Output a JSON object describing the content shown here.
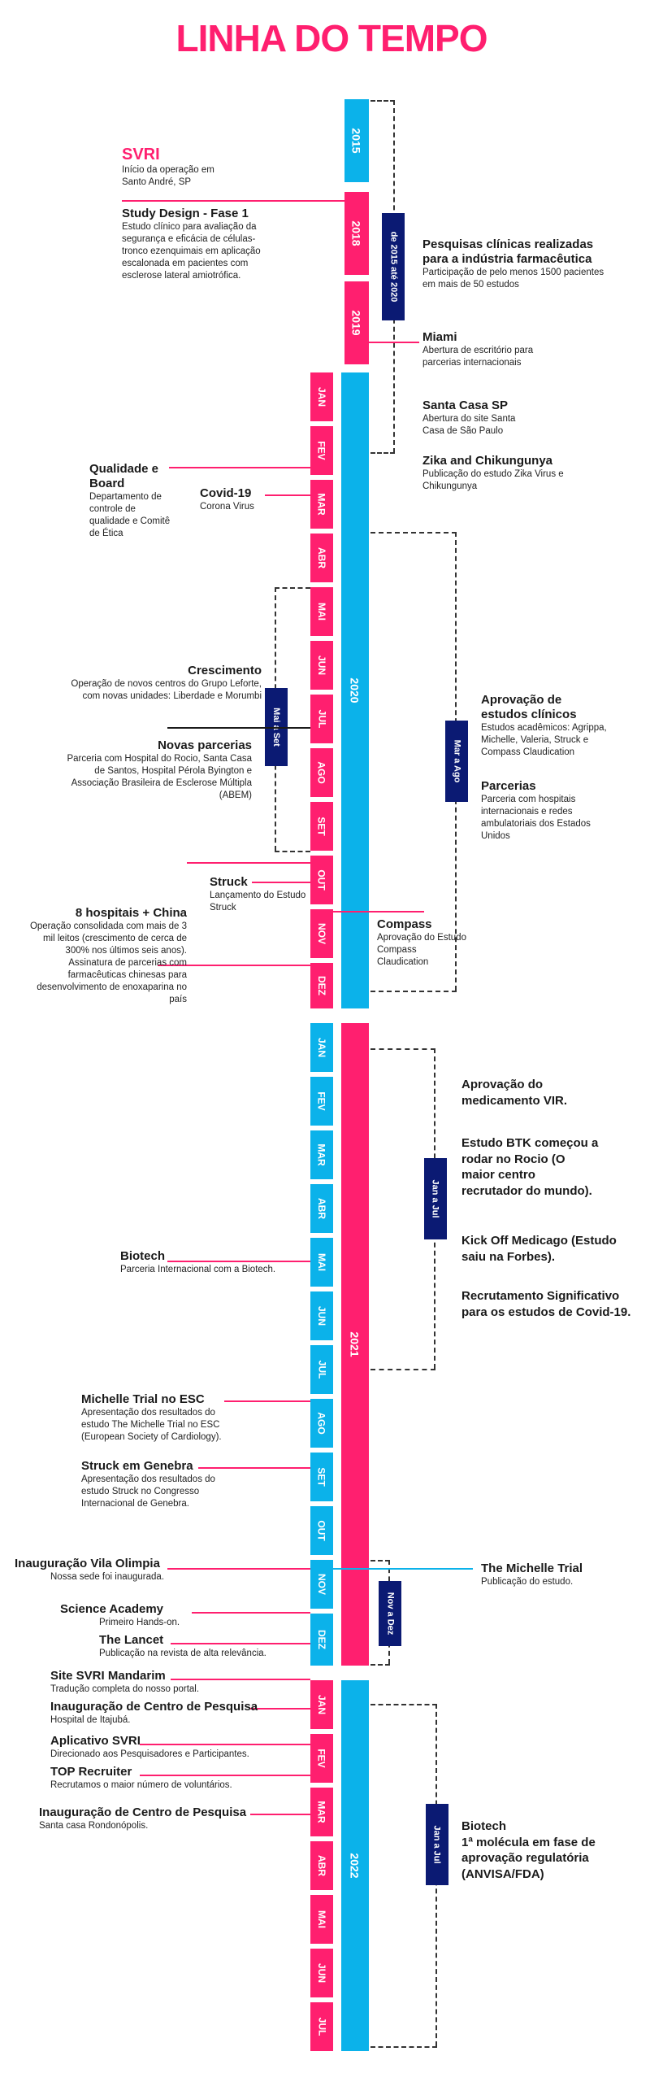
{
  "title": "LINHA DO TEMPO",
  "years": {
    "y2015": "2015",
    "y2018": "2018",
    "y2019": "2019",
    "y2020": "2020",
    "y2021": "2021",
    "y2022": "2022"
  },
  "months": [
    "JAN",
    "FEV",
    "MAR",
    "ABR",
    "MAI",
    "JUN",
    "JUL",
    "AGO",
    "SET",
    "OUT",
    "NOV",
    "DEZ"
  ],
  "ranges": {
    "r2015_2020": "de 2015 até 2020",
    "mai_set": "Mai a Set",
    "mar_ago": "Mar a Ago",
    "jan_jul_2021": "Jan a Jul",
    "nov_dez": "Nov a Dez",
    "jan_jul_2022": "Jan a Jul"
  },
  "events": {
    "svri": {
      "title": "SVRI",
      "desc": "Início da operação em Santo André, SP"
    },
    "study_design": {
      "title": "Study Design - Fase 1",
      "desc": "Estudo clínico para avaliação da segurança e eficácia de células-tronco ezenquimais em aplicação escalonada em pacientes com esclerose lateral amiotrófica."
    },
    "pesquisas": {
      "title": "Pesquisas clínicas realizadas para a indústria farmacêutica",
      "desc": "Participação de pelo menos 1500 pacientes em mais de 50 estudos"
    },
    "miami": {
      "title": "Miami",
      "desc": "Abertura de escritório para parcerias internacionais"
    },
    "santa_casa": {
      "title": "Santa Casa SP",
      "desc": "Abertura do site Santa Casa de São Paulo"
    },
    "zika": {
      "title": "Zika and Chikungunya",
      "desc": "Publicação do estudo Zika Virus e Chikungunya"
    },
    "qualidade": {
      "title": "Qualidade e Board",
      "desc": "Departamento de controle de qualidade e Comitê de Ética"
    },
    "covid19": {
      "title": "Covid-19",
      "desc": "Corona Virus"
    },
    "crescimento": {
      "title": "Crescimento",
      "desc": "Operação de novos centros do Grupo Leforte, com novas unidades: Liberdade e Morumbi"
    },
    "novas_parcerias": {
      "title": "Novas parcerias",
      "desc": "Parceria com Hospital do Rocio, Santa Casa de Santos, Hospital Pérola Byington e Associação Brasileira de Esclerose Múltipla (ABEM)"
    },
    "aprovacao_estudos": {
      "title": "Aprovação de estudos clínicos",
      "desc": "Estudos acadêmicos: Agrippa, Michelle, Valeria, Struck e Compass Claudication"
    },
    "parcerias": {
      "title": "Parcerias",
      "desc": "Parceria com hospitais internacionais e redes ambulatoriais dos Estados Unidos"
    },
    "struck": {
      "title": "Struck",
      "desc": "Lançamento do Estudo Struck"
    },
    "hospitais": {
      "title": "8 hospitais + China",
      "desc": "Operação consolidada com mais de 3 mil leitos (crescimento de cerca de 300% nos últimos seis anos). Assinatura de parcerias com farmacêuticas chinesas para desenvolvimento de enoxaparina no país"
    },
    "compass": {
      "title": "Compass",
      "desc": "Aprovação do Estudo Compass Claudication"
    },
    "vir": {
      "title": "Aprovação do medicamento VIR."
    },
    "btk": {
      "title": "Estudo BTK começou a rodar no Rocio (O maior centro recrutador do mundo)."
    },
    "kickoff": {
      "title": "Kick Off Medicago (Estudo saiu na Forbes)."
    },
    "recrutamento": {
      "title": "Recrutamento Significativo para os estudos de Covid-19."
    },
    "biotech2021": {
      "title": "Biotech",
      "desc": "Parceria Internacional com a Biotech."
    },
    "michelle_esc": {
      "title": "Michelle Trial no ESC",
      "desc": "Apresentação dos resultados do estudo The Michelle Trial no ESC (European Society of Cardiology)."
    },
    "struck_genebra": {
      "title": "Struck em Genebra",
      "desc": "Apresentação dos resultados do estudo Struck no Congresso Internacional de Genebra."
    },
    "vila_olimpia": {
      "title": "Inauguração Vila Olimpia",
      "desc": "Nossa sede foi inaugurada."
    },
    "michelle_trial": {
      "title": "The Michelle Trial",
      "desc": "Publicação do estudo."
    },
    "science_academy": {
      "title": "Science Academy",
      "desc": "Primeiro Hands-on."
    },
    "lancet": {
      "title": "The Lancet",
      "desc": "Publicação na revista de alta relevância."
    },
    "mandarim": {
      "title": "Site SVRI Mandarim",
      "desc": "Tradução completa do nosso portal."
    },
    "centro_itajuba": {
      "title": "Inauguração de Centro de Pesquisa",
      "desc": "Hospital de Itajubá."
    },
    "aplicativo": {
      "title": "Aplicativo SVRI",
      "desc": "Direcionado aos Pesquisadores e Participantes."
    },
    "top_recruiter": {
      "title": "TOP Recruiter",
      "desc": "Recrutamos o maior número de voluntários."
    },
    "centro_rondon": {
      "title": "Inauguração de Centro de Pesquisa",
      "desc": "Santa casa Rondonópolis."
    },
    "biotech2022": {
      "title": "Biotech",
      "desc": "1ª molécula em fase de aprovação regulatória (ANVISA/FDA)"
    }
  },
  "colors": {
    "pink": "#ff1f6f",
    "cyan": "#0bb2ea",
    "navy": "#0b1a73"
  }
}
